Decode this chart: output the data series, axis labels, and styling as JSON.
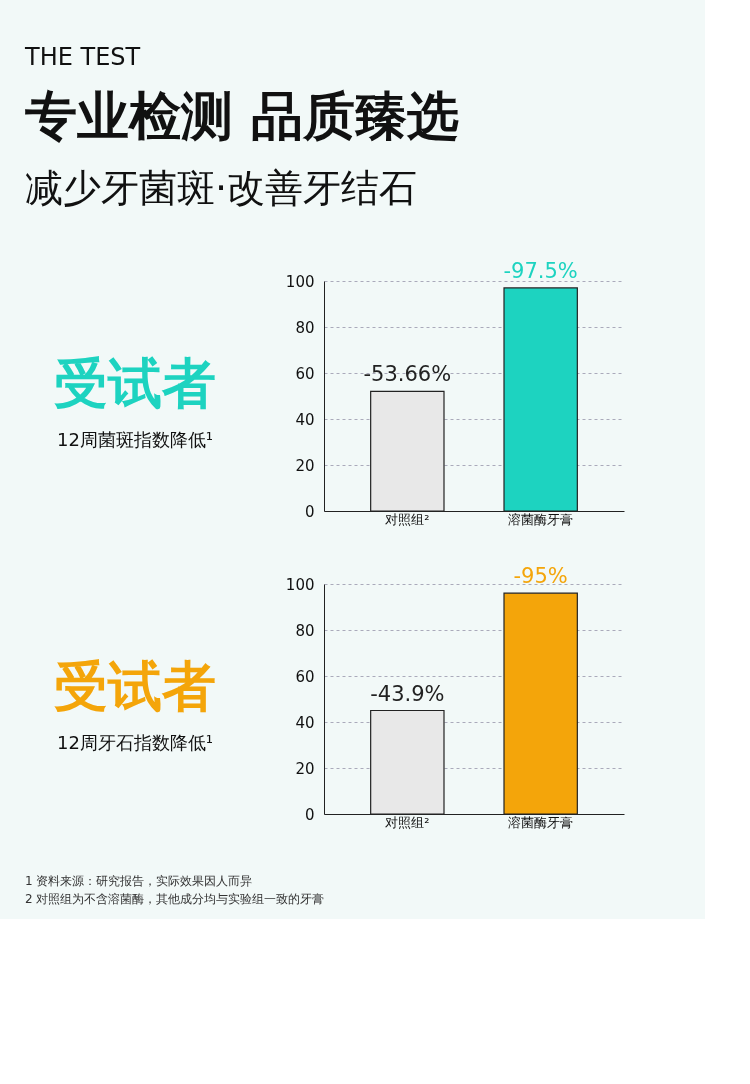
{
  "chart_data": [
    {
      "type": "bar",
      "title": "受试者",
      "subtitle": "12周菌斑指数降低¹",
      "annotations": [
        "THE TEST",
        "专业检测 品质臻选",
        "减少牙菌斑·改善牙结石",
        {
          "text": "-53.66%",
          "x": "对照组²",
          "y": 52
        },
        {
          "text": "-97.5%",
          "x": "溶菌酶牙膏",
          "y": 97
        }
      ],
      "categories": [
        "对照组²",
        "溶菌酶牙膏"
      ],
      "values": [
        52,
        97
      ],
      "colors": [
        "#e8e8e8",
        "#1dd3c0"
      ],
      "ylim": [
        0,
        100
      ],
      "yticks": [
        0,
        20,
        40,
        60,
        80,
        100
      ],
      "grid": "y"
    },
    {
      "type": "bar",
      "title": "受试者",
      "subtitle": "12周牙石指数降低¹",
      "annotations": [
        "1 资料来源：研究报告，实际效果因人而异",
        "2 对照组为不含溶菌酶，其他成分均与实验组一致的牙膏",
        {
          "text": "-43.9%",
          "x": "对照组²",
          "y": 45
        },
        {
          "text": "-95%",
          "x": "溶菌酶牙膏",
          "y": 96
        }
      ],
      "categories": [
        "对照组²",
        "溶菌酶牙膏"
      ],
      "values": [
        45,
        96
      ],
      "colors": [
        "#e8e8e8",
        "#f4a50a"
      ],
      "ylim": [
        0,
        100
      ],
      "yticks": [
        0,
        20,
        40,
        60,
        80,
        100
      ],
      "grid": "y"
    }
  ]
}
